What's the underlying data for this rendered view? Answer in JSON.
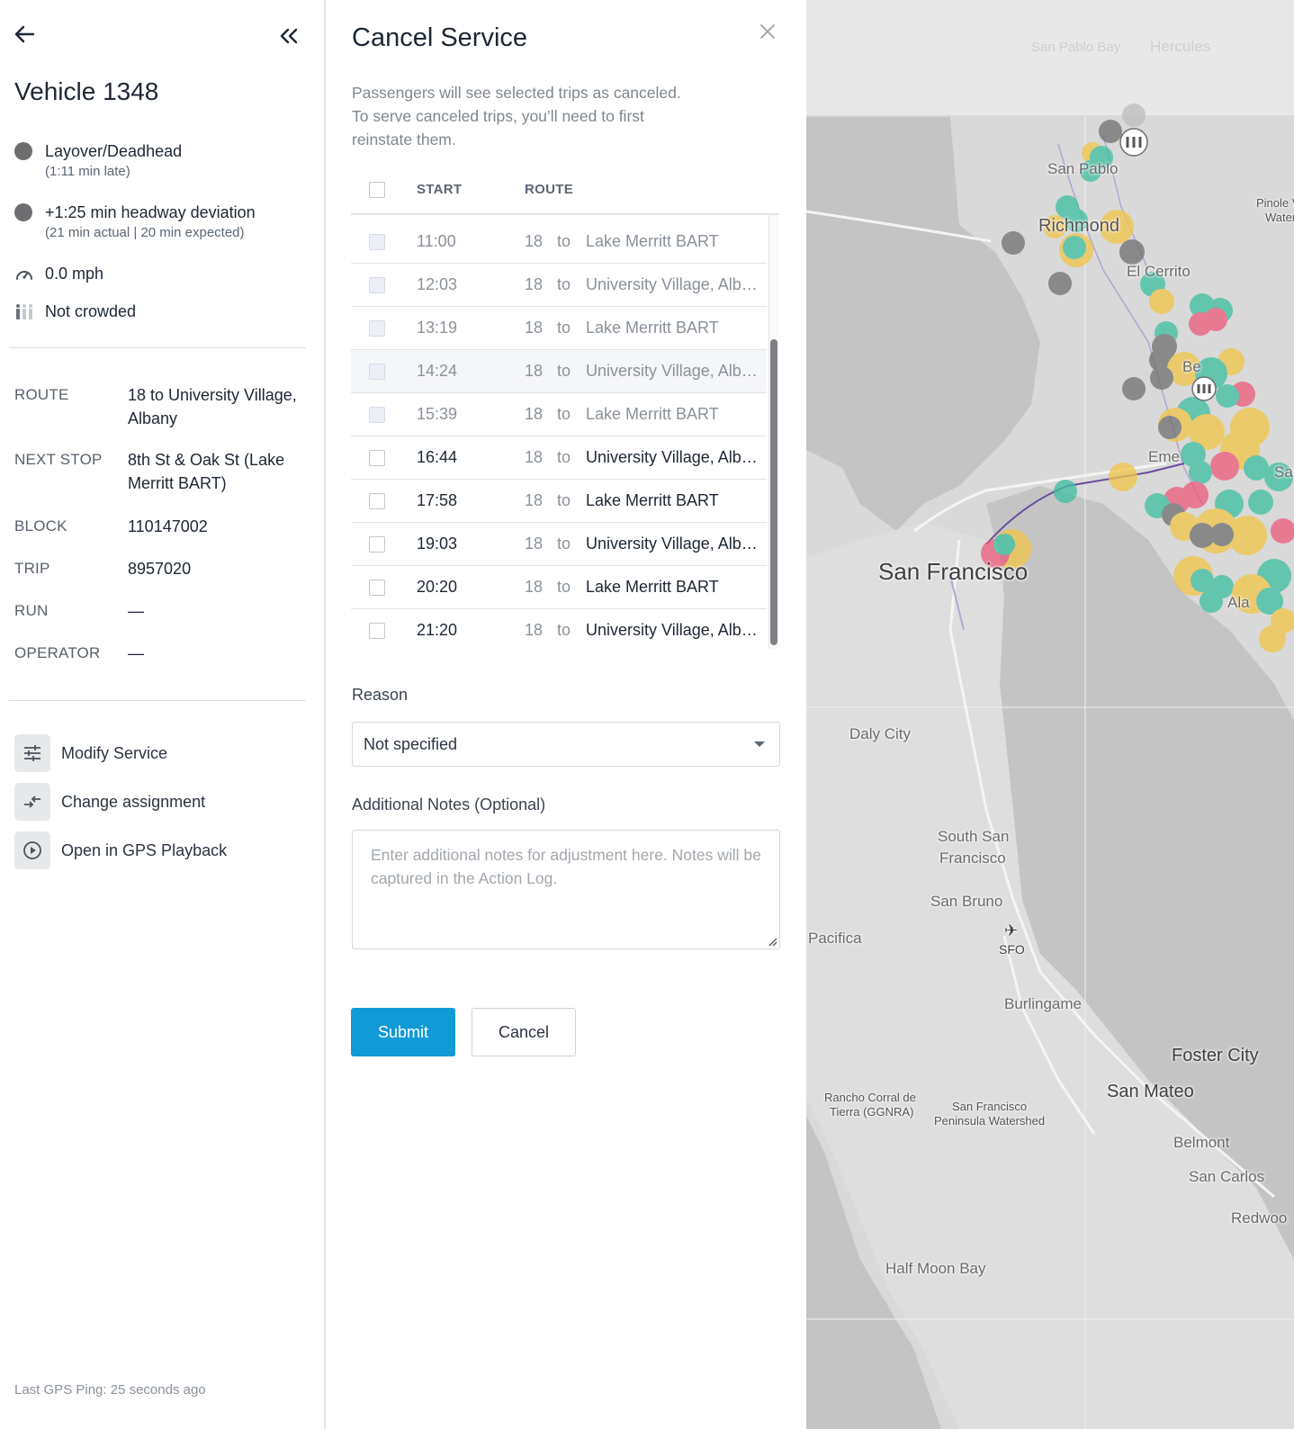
{
  "vehicle": {
    "title": "Vehicle 1348",
    "status": [
      {
        "main": "Layover/Deadhead",
        "sub": "(1:11 min late)"
      },
      {
        "main": "+1:25 min headway deviation",
        "sub": "(21 min actual | 20 min expected)"
      }
    ],
    "speed": "0.0 mph",
    "crowding": "Not crowded",
    "details": [
      {
        "label": "ROUTE",
        "value": "18 to University Village, Albany"
      },
      {
        "label": "NEXT STOP",
        "value": "8th St & Oak St (Lake Merritt BART)"
      },
      {
        "label": "BLOCK",
        "value": "110147002"
      },
      {
        "label": "TRIP",
        "value": "8957020"
      },
      {
        "label": "RUN",
        "value": "—"
      },
      {
        "label": "OPERATOR",
        "value": "—"
      }
    ],
    "actions": [
      {
        "label": "Modify Service",
        "icon": "sliders-icon"
      },
      {
        "label": "Change assignment",
        "icon": "swap-icon"
      },
      {
        "label": "Open in GPS Playback",
        "icon": "play-icon"
      }
    ],
    "last_ping": "Last GPS Ping: 25 seconds ago"
  },
  "cancel_service": {
    "title": "Cancel Service",
    "description_lines": [
      "Passengers will see selected trips as canceled.",
      "To serve canceled trips, you’ll need to first",
      "reinstate them."
    ],
    "columns": {
      "start": "START",
      "route": "ROUTE"
    },
    "trips": [
      {
        "start": "11:00",
        "route": "18",
        "to": "to",
        "dest": "Lake Merritt BART"
      },
      {
        "start": "12:03",
        "route": "18",
        "to": "to",
        "dest": "University Village, Albany"
      },
      {
        "start": "13:19",
        "route": "18",
        "to": "to",
        "dest": "Lake Merritt BART"
      },
      {
        "start": "14:24",
        "route": "18",
        "to": "to",
        "dest": "University Village, Albany"
      },
      {
        "start": "15:39",
        "route": "18",
        "to": "to",
        "dest": "Lake Merritt BART"
      },
      {
        "start": "16:44",
        "route": "18",
        "to": "to",
        "dest": "University Village, Albany"
      },
      {
        "start": "17:58",
        "route": "18",
        "to": "to",
        "dest": "Lake Merritt BART"
      },
      {
        "start": "19:03",
        "route": "18",
        "to": "to",
        "dest": "University Village, Albany"
      },
      {
        "start": "20:20",
        "route": "18",
        "to": "to",
        "dest": "Lake Merritt BART"
      },
      {
        "start": "21:20",
        "route": "18",
        "to": "to",
        "dest": "University Village, Albany"
      }
    ],
    "reason_label": "Reason",
    "reason_value": "Not specified",
    "notes_label": "Additional Notes (Optional)",
    "notes_placeholder": "Enter additional notes for adjustment here. Notes will be captured in the Action Log.",
    "submit_label": "Submit",
    "cancel_label": "Cancel"
  },
  "map": {
    "labels": {
      "san_pablo_bay": "San Pablo Bay",
      "hercules": "Hercules",
      "san_pablo": "San Pablo",
      "pinole": "Pinole V",
      "water": "Water",
      "richmond": "Richmond",
      "el_cerrito": "El Cerrito",
      "san_francisco": "San Francisco",
      "daly_city": "Daly City",
      "south_sf_1": "South San",
      "south_sf_2": "Francisco",
      "san_bruno": "San Bruno",
      "pacifica": "Pacifica",
      "sfo": "SFO",
      "burlingame": "Burlingame",
      "foster_city": "Foster City",
      "san_mateo": "San Mateo",
      "rancho_1": "Rancho Corral de",
      "rancho_2": "Tierra (GGNRA)",
      "watershed_1": "San Francisco",
      "watershed_2": "Peninsula Watershed",
      "belmont": "Belmont",
      "san_carlos": "San Carlos",
      "redwood": "Redwoo",
      "half_moon_bay": "Half Moon Bay",
      "emeryville": "Eme",
      "alameda": "Ala",
      "berkeley": "Be",
      "san_leandro": "San"
    },
    "colors": {
      "teal": "#3dbfa0",
      "yellow": "#f2c548",
      "red": "#ec5a7a",
      "gray": "#6f6f6f"
    }
  }
}
